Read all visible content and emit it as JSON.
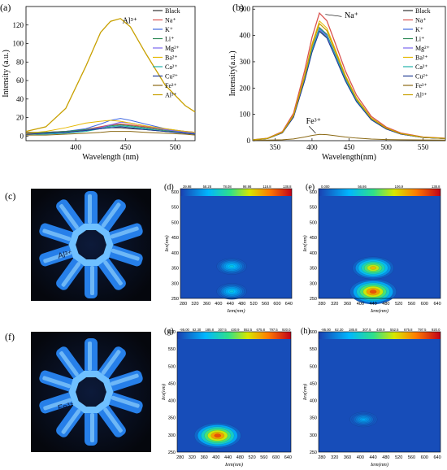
{
  "colors": {
    "Black": "#333333",
    "Na+": "#d9534f",
    "K+": "#4169e1",
    "Li+": "#2e8b57",
    "Mg2+": "#7b68ee",
    "Ba2+": "#e6b800",
    "Ca2+": "#20b2aa",
    "Cu2+": "#1f3a93",
    "Fe3+": "#8b6914",
    "Al3+": "#c8a000",
    "map_low": "#1a3fb0",
    "map_high": "#c0001a"
  },
  "panels": {
    "a": {
      "letter": "(a)",
      "callout": "Al³⁺"
    },
    "b": {
      "letter": "(b)",
      "callout_na": "Na⁺",
      "callout_fe": "Fe³⁺"
    },
    "c": {
      "letter": "(c)",
      "photo_label": "Al³⁺"
    },
    "d": {
      "letter": "(d)"
    },
    "e": {
      "letter": "(e)"
    },
    "f": {
      "letter": "(f)",
      "photo_label": "Fe³⁺"
    },
    "g": {
      "letter": "(g)"
    },
    "h": {
      "letter": "(h)"
    }
  },
  "chart_data": [
    {
      "id": "a",
      "type": "line",
      "xlabel": "Wavelength (nm)",
      "ylabel": "Intensity (a.u.)",
      "xlim": [
        350,
        520
      ],
      "ylim": [
        -5,
        140
      ],
      "xticks": [
        400,
        450,
        500
      ],
      "yticks": [
        0,
        20,
        40,
        60,
        80,
        100,
        120
      ],
      "legend_position": "top-right",
      "legend": [
        "Black",
        "Na⁺",
        "K⁺",
        "Li⁺",
        "Mg²⁺",
        "Ba²⁺",
        "Ca²⁺",
        "Cu²⁺",
        "Fe³⁺",
        "Al³⁺"
      ],
      "x": [
        350,
        370,
        390,
        410,
        425,
        435,
        445,
        455,
        470,
        490,
        510,
        520
      ],
      "series": [
        {
          "name": "Black",
          "key": "Black",
          "values": [
            4,
            4,
            5,
            6,
            8,
            9,
            9,
            8,
            7,
            5,
            4,
            3
          ]
        },
        {
          "name": "Na⁺",
          "key": "Na+",
          "values": [
            3,
            4,
            5,
            7,
            10,
            12,
            13,
            12,
            10,
            7,
            5,
            4
          ]
        },
        {
          "name": "K⁺",
          "key": "K+",
          "values": [
            2,
            3,
            5,
            8,
            13,
            17,
            19,
            17,
            13,
            8,
            5,
            4
          ]
        },
        {
          "name": "Li⁺",
          "key": "Li+",
          "values": [
            3,
            4,
            5,
            7,
            9,
            11,
            12,
            11,
            9,
            6,
            4,
            3
          ]
        },
        {
          "name": "Mg²⁺",
          "key": "Mg2+",
          "values": [
            2,
            3,
            4,
            6,
            9,
            12,
            15,
            14,
            11,
            7,
            4,
            3
          ]
        },
        {
          "name": "Ba²⁺",
          "key": "Ba2+",
          "values": [
            3,
            5,
            9,
            14,
            16,
            17,
            16,
            14,
            11,
            8,
            5,
            4
          ]
        },
        {
          "name": "Ca²⁺",
          "key": "Ca2+",
          "values": [
            1,
            2,
            3,
            5,
            8,
            10,
            11,
            10,
            8,
            5,
            3,
            2
          ]
        },
        {
          "name": "Cu²⁺",
          "key": "Cu2+",
          "values": [
            2,
            3,
            4,
            6,
            8,
            9,
            10,
            9,
            7,
            5,
            3,
            2
          ]
        },
        {
          "name": "Fe³⁺",
          "key": "Fe3+",
          "values": [
            1,
            1,
            2,
            3,
            4,
            5,
            5,
            5,
            4,
            3,
            2,
            1
          ]
        },
        {
          "name": "Al³⁺",
          "key": "Al3+",
          "values": [
            5,
            10,
            30,
            75,
            112,
            124,
            127,
            118,
            90,
            55,
            33,
            26
          ]
        }
      ]
    },
    {
      "id": "b",
      "type": "line",
      "xlabel": "Wavelength(nm)",
      "ylabel": "Intensity(a.u.)",
      "xlim": [
        320,
        580
      ],
      "ylim": [
        0,
        510
      ],
      "xticks": [
        350,
        400,
        450,
        500,
        550
      ],
      "yticks": [
        0,
        100,
        200,
        300,
        400,
        500
      ],
      "legend_position": "top-right",
      "legend": [
        "Black",
        "Na⁺",
        "K⁺",
        "Li⁺",
        "Mg²⁺",
        "Ba²⁺",
        "Ca²⁺",
        "Cu²⁺",
        "Fe³⁺",
        "Al³⁺"
      ],
      "x": [
        320,
        340,
        360,
        375,
        390,
        400,
        410,
        420,
        430,
        445,
        460,
        480,
        500,
        520,
        550,
        580
      ],
      "series": [
        {
          "name": "Black",
          "key": "Black",
          "peak": 430
        },
        {
          "name": "Na⁺",
          "key": "Na+",
          "peak": 485
        },
        {
          "name": "K⁺",
          "key": "K+",
          "peak": 425
        },
        {
          "name": "Li⁺",
          "key": "Li+",
          "peak": 418
        },
        {
          "name": "Mg²⁺",
          "key": "Mg2+",
          "peak": 422
        },
        {
          "name": "Ba²⁺",
          "key": "Ba2+",
          "peak": 455
        },
        {
          "name": "Ca²⁺",
          "key": "Ca2+",
          "peak": 428
        },
        {
          "name": "Cu²⁺",
          "key": "Cu2+",
          "peak": 415
        },
        {
          "name": "Fe³⁺",
          "key": "Fe3+",
          "peak": 22
        },
        {
          "name": "Al³⁺",
          "key": "Al3+",
          "peak": 445
        }
      ],
      "shape": [
        3,
        8,
        30,
        90,
        230,
        340,
        420,
        395,
        330,
        230,
        150,
        80,
        45,
        25,
        12,
        8
      ]
    },
    {
      "id": "d",
      "type": "heatmap",
      "xlabel": "Iem(nm)",
      "ylabel": "Iex(nm)",
      "xlim": [
        270,
        650
      ],
      "ylim": [
        250,
        610
      ],
      "xticks": [
        280,
        320,
        360,
        400,
        440,
        480,
        520,
        560,
        600,
        640
      ],
      "yticks": [
        250,
        300,
        350,
        400,
        450,
        500,
        550,
        600
      ],
      "colorbar_ticks": [
        "39.98",
        "58.28",
        "78.08",
        "98.98",
        "118.8",
        "138.8"
      ],
      "peaks": [
        {
          "x": 445,
          "y": 355,
          "level": 0.35
        },
        {
          "x": 445,
          "y": 273,
          "level": 0.35
        }
      ]
    },
    {
      "id": "e",
      "type": "heatmap",
      "xlabel": "Iem(nm)",
      "ylabel": "Iex(nm)",
      "xlim": [
        270,
        650
      ],
      "ylim": [
        250,
        610
      ],
      "xticks": [
        280,
        320,
        360,
        400,
        440,
        480,
        520,
        560,
        600,
        640
      ],
      "yticks": [
        250,
        300,
        350,
        400,
        450,
        500,
        550,
        600
      ],
      "colorbar_ticks": [
        "0.000",
        "56.86",
        "106.9",
        "138.8"
      ],
      "peaks": [
        {
          "x": 440,
          "y": 350,
          "level": 0.8
        },
        {
          "x": 440,
          "y": 272,
          "level": 1.0
        }
      ]
    },
    {
      "id": "g",
      "type": "heatmap",
      "xlabel": "Iem(nm)",
      "ylabel": "Iex(nm)",
      "xlim": [
        270,
        650
      ],
      "ylim": [
        250,
        600
      ],
      "xticks": [
        280,
        320,
        360,
        400,
        440,
        480,
        520,
        560,
        600,
        640
      ],
      "yticks": [
        250,
        300,
        350,
        400,
        450,
        500,
        550,
        600
      ],
      "colorbar_ticks": [
        "-95.00",
        "62.30",
        "185.8",
        "307.5",
        "430.9",
        "552.5",
        "675.8",
        "797.5",
        "920.0"
      ],
      "peaks": [
        {
          "x": 405,
          "y": 298,
          "level": 1.0
        }
      ]
    },
    {
      "id": "h",
      "type": "heatmap",
      "xlabel": "Iem(nm)",
      "ylabel": "Iex(nm)",
      "xlim": [
        270,
        650
      ],
      "ylim": [
        250,
        600
      ],
      "xticks": [
        280,
        320,
        360,
        400,
        440,
        480,
        520,
        560,
        600,
        640
      ],
      "yticks": [
        250,
        300,
        350,
        400,
        450,
        500,
        550,
        600
      ],
      "colorbar_ticks": [
        "-95.00",
        "62.30",
        "185.8",
        "307.5",
        "430.9",
        "552.5",
        "675.8",
        "797.5",
        "920.0"
      ],
      "peaks": [
        {
          "x": 410,
          "y": 345,
          "level": 0.25
        }
      ]
    }
  ]
}
